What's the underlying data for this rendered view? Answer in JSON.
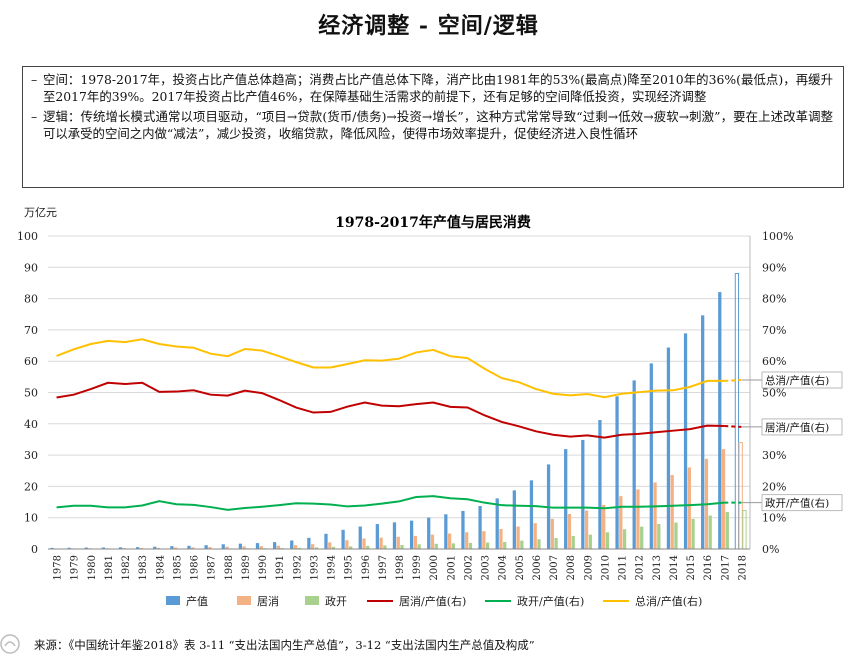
{
  "page": {
    "title": "经济调整 - 空间/逻辑",
    "bullets": [
      "空间：1978-2017年，投资占比产值总体趋高；消费占比产值总体下降，消产比由1981年的53%(最高点)降至2010年的36%(最低点)，再缓升至2017年的39%。2017年投资占比产值46%，在保障基础生活需求的前提下，还有足够的空间降低投资，实现经济调整",
      "逻辑：传统增长模式通常以项目驱动，“项目→贷款(货币/债务)→投资→增长”，这种方式常常导致“过剩→低效→疲软→刺激”，要在上述改革调整可以承受的空间之内做“减法”，减少投资，收缩贷款，降低风险，使得市场效率提升，促使经济进入良性循环"
    ],
    "bullet_mark": "–",
    "source": "来源：《中国统计年鉴2018》表 3-11 “支出法国内生产总值”，3-12 “支出法国内生产总值及构成”"
  },
  "chart_data": {
    "type": "bar+line",
    "title": "1978-2017年产值与居民消费",
    "ylabel_left": "万亿元",
    "ylim_left": [
      0,
      100
    ],
    "yticks_left": [
      0,
      10,
      20,
      30,
      40,
      50,
      60,
      70,
      80,
      90,
      100
    ],
    "ylim_right": [
      0,
      100
    ],
    "yticks_right": [
      "0%",
      "10%",
      "20%",
      "30%",
      "40%",
      "50%",
      "60%",
      "70%",
      "80%",
      "90%",
      "100%"
    ],
    "categories": [
      "1978",
      "1979",
      "1980",
      "1981",
      "1982",
      "1983",
      "1984",
      "1985",
      "1986",
      "1987",
      "1988",
      "1989",
      "1990",
      "1991",
      "1992",
      "1993",
      "1994",
      "1995",
      "1996",
      "1997",
      "1998",
      "1999",
      "2000",
      "2001",
      "2002",
      "2003",
      "2004",
      "2005",
      "2006",
      "2007",
      "2008",
      "2009",
      "2010",
      "2011",
      "2012",
      "2013",
      "2014",
      "2015",
      "2016",
      "2017",
      "2018"
    ],
    "bar_series": [
      {
        "name": "产值",
        "color": "#5b9bd5",
        "values": [
          0.37,
          0.41,
          0.46,
          0.49,
          0.54,
          0.6,
          0.73,
          0.91,
          1.03,
          1.21,
          1.51,
          1.71,
          1.88,
          2.2,
          2.71,
          3.57,
          4.86,
          6.13,
          7.18,
          7.97,
          8.52,
          9.06,
          10.03,
          11.09,
          12.17,
          13.74,
          16.18,
          18.73,
          21.94,
          27.02,
          31.92,
          34.85,
          41.21,
          48.79,
          53.86,
          59.3,
          64.36,
          68.89,
          74.64,
          82.08,
          88.0
        ]
      },
      {
        "name": "居消",
        "color": "#f4b183",
        "values": [
          0.18,
          0.2,
          0.24,
          0.26,
          0.28,
          0.32,
          0.37,
          0.46,
          0.52,
          0.6,
          0.74,
          0.85,
          0.91,
          1.03,
          1.22,
          1.55,
          2.11,
          2.8,
          3.35,
          3.64,
          3.9,
          4.19,
          4.59,
          4.94,
          5.35,
          5.69,
          6.39,
          7.17,
          8.26,
          9.61,
          11.19,
          12.29,
          14.08,
          16.89,
          19.04,
          21.27,
          23.62,
          26.05,
          28.81,
          31.9,
          34.0
        ]
      },
      {
        "name": "政开",
        "color": "#a9d18e",
        "values": [
          0.05,
          0.06,
          0.06,
          0.06,
          0.07,
          0.08,
          0.11,
          0.13,
          0.14,
          0.16,
          0.18,
          0.22,
          0.24,
          0.29,
          0.36,
          0.5,
          0.7,
          0.84,
          1.0,
          1.16,
          1.3,
          1.5,
          1.67,
          1.8,
          1.94,
          2.04,
          2.27,
          2.68,
          3.1,
          3.52,
          4.18,
          4.59,
          5.34,
          6.32,
          7.13,
          7.97,
          8.45,
          9.61,
          10.7,
          11.8,
          12.3
        ]
      }
    ],
    "line_series": [
      {
        "name": "居消/产值(右)",
        "color": "#c00000",
        "values": [
          48.4,
          49.3,
          51.1,
          53.1,
          52.7,
          53.1,
          50.2,
          50.3,
          50.7,
          49.3,
          49.0,
          50.6,
          49.8,
          47.6,
          45.2,
          43.6,
          43.8,
          45.5,
          46.8,
          45.8,
          45.6,
          46.3,
          46.8,
          45.4,
          45.2,
          42.7,
          40.6,
          39.2,
          37.6,
          36.5,
          35.9,
          36.3,
          35.6,
          36.5,
          36.8,
          37.3,
          37.8,
          38.3,
          39.4,
          39.3,
          39.0
        ],
        "projected_last": true
      },
      {
        "name": "政开/产值(右)",
        "color": "#00b050",
        "values": [
          13.3,
          13.8,
          13.8,
          13.3,
          13.3,
          13.9,
          15.3,
          14.3,
          14.1,
          13.4,
          12.5,
          13.1,
          13.5,
          14.0,
          14.6,
          14.5,
          14.2,
          13.6,
          13.9,
          14.5,
          15.2,
          16.6,
          16.9,
          16.2,
          15.9,
          14.8,
          14.0,
          13.8,
          13.7,
          13.2,
          13.2,
          13.2,
          13.0,
          13.5,
          13.5,
          13.6,
          13.8,
          14.0,
          14.3,
          14.8,
          14.8
        ],
        "projected_last": true
      },
      {
        "name": "总消/产值(右)",
        "color": "#ffc000",
        "values": [
          61.7,
          63.8,
          65.5,
          66.5,
          66.1,
          67.0,
          65.5,
          64.7,
          64.3,
          62.4,
          61.6,
          63.9,
          63.4,
          61.6,
          59.7,
          58.0,
          58.0,
          59.1,
          60.3,
          60.2,
          60.8,
          62.8,
          63.6,
          61.6,
          61.0,
          57.6,
          54.6,
          53.3,
          51.1,
          49.6,
          49.1,
          49.5,
          48.5,
          49.6,
          50.1,
          50.6,
          50.7,
          51.8,
          53.7,
          53.7,
          54.0
        ],
        "projected_last": true
      }
    ],
    "right_annotations": [
      {
        "series": "总消/产值(右)",
        "label": "总消/产值(右)"
      },
      {
        "series": "居消/产值(右)",
        "label": "居消/产值(右)"
      },
      {
        "series": "政开/产值(右)",
        "label": "政开/产值(右)"
      }
    ],
    "legend": [
      "产值",
      "居消",
      "政开",
      "居消/产值(右)",
      "政开/产值(右)",
      "总消/产值(右)"
    ],
    "legend_position": "bottom",
    "grid": true
  }
}
